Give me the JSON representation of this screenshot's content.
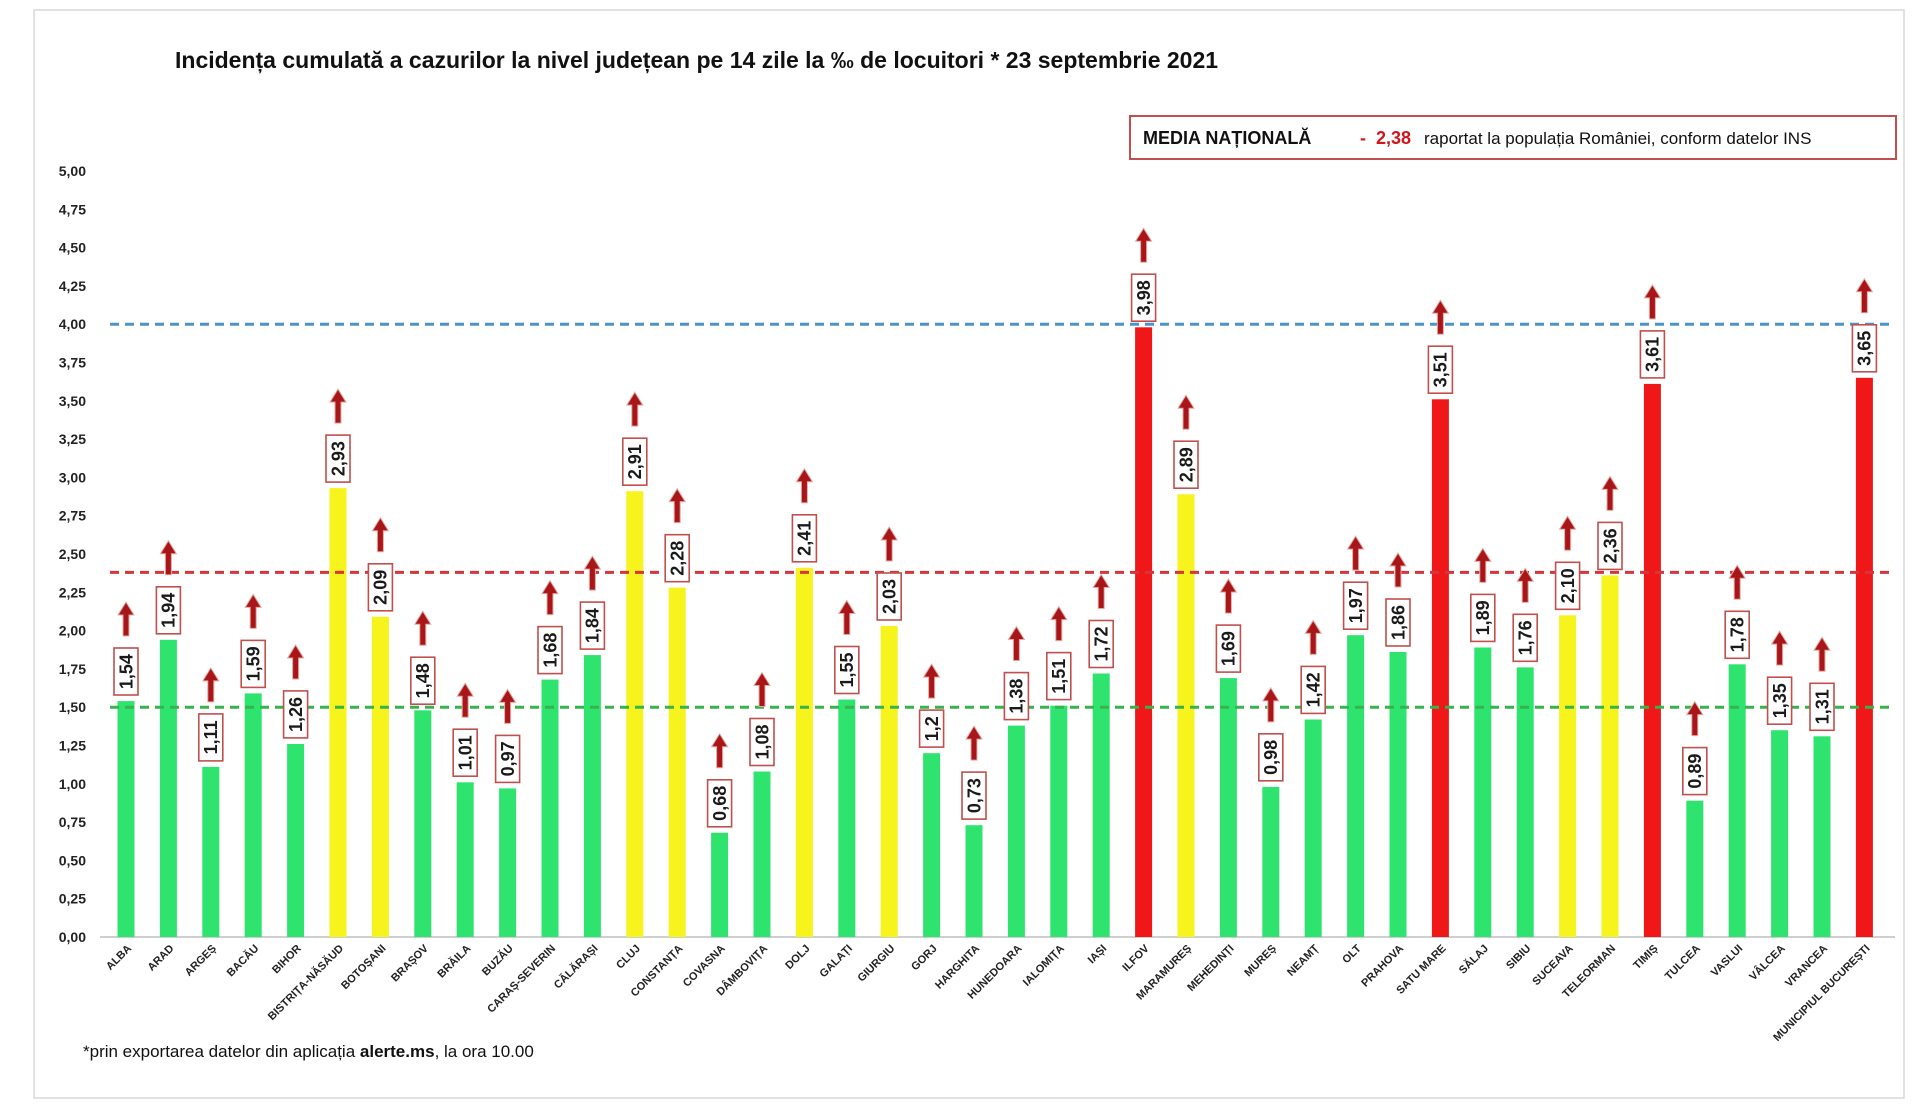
{
  "chart_data": {
    "type": "bar",
    "title": "Incidența cumulată a cazurilor la nivel județean pe 14 zile la ‰ de locuitori * 23 septembrie 2021",
    "xlabel": "",
    "ylabel": "",
    "categories": [
      "ALBA",
      "ARAD",
      "ARGEȘ",
      "BACĂU",
      "BIHOR",
      "BISTRIȚA-NĂSĂUD",
      "BOTOȘANI",
      "BRAȘOV",
      "BRĂILA",
      "BUZĂU",
      "CARAȘ-SEVERIN",
      "CĂLĂRAȘI",
      "CLUJ",
      "CONSTANȚA",
      "COVASNA",
      "DÂMBOVIȚA",
      "DOLJ",
      "GALAȚI",
      "GIURGIU",
      "GORJ",
      "HARGHITA",
      "HUNEDOARA",
      "IALOMIȚA",
      "IAȘI",
      "ILFOV",
      "MARAMUREȘ",
      "MEHEDINȚI",
      "MUREȘ",
      "NEAMȚ",
      "OLT",
      "PRAHOVA",
      "SATU MARE",
      "SĂLAJ",
      "SIBIU",
      "SUCEAVA",
      "TELEORMAN",
      "TIMIȘ",
      "TULCEA",
      "VASLUI",
      "VÂLCEA",
      "VRANCEA",
      "MUNICIPIUL BUCUREȘTI"
    ],
    "values": [
      1.54,
      1.94,
      1.11,
      1.59,
      1.26,
      2.93,
      2.09,
      1.48,
      1.01,
      0.97,
      1.68,
      1.84,
      2.91,
      2.28,
      0.68,
      1.08,
      2.41,
      1.55,
      2.03,
      1.2,
      0.73,
      1.38,
      1.51,
      1.72,
      3.98,
      2.89,
      1.69,
      0.98,
      1.42,
      1.97,
      1.86,
      3.51,
      1.89,
      1.76,
      2.1,
      2.36,
      3.61,
      0.89,
      1.78,
      1.35,
      1.31,
      3.65
    ],
    "value_labels": [
      "1,54",
      "1,94",
      "1,11",
      "1,59",
      "1,26",
      "2,93",
      "2,09",
      "1,48",
      "1,01",
      "0,97",
      "1,68",
      "1,84",
      "2,91",
      "2,28",
      "0,68",
      "1,08",
      "2,41",
      "1,55",
      "2,03",
      "1,2",
      "0,73",
      "1,38",
      "1,51",
      "1,72",
      "3,98",
      "2,89",
      "1,69",
      "0,98",
      "1,42",
      "1,97",
      "1,86",
      "3,51",
      "1,89",
      "1,76",
      "2,10",
      "2,36",
      "3,61",
      "0,89",
      "1,78",
      "1,35",
      "1,31",
      "3,65"
    ],
    "bar_colors": [
      "green",
      "green",
      "green",
      "green",
      "green",
      "yellow",
      "yellow",
      "green",
      "green",
      "green",
      "green",
      "green",
      "yellow",
      "yellow",
      "green",
      "green",
      "yellow",
      "green",
      "yellow",
      "green",
      "green",
      "green",
      "green",
      "green",
      "red",
      "yellow",
      "green",
      "green",
      "green",
      "green",
      "green",
      "red",
      "green",
      "green",
      "yellow",
      "yellow",
      "red",
      "green",
      "green",
      "green",
      "green",
      "red"
    ],
    "trend_icons": [
      "up-arrow",
      "up-arrow",
      "up-arrow",
      "up-arrow",
      "up-arrow",
      "up-arrow",
      "up-arrow",
      "up-arrow",
      "up-arrow",
      "up-arrow",
      "up-arrow",
      "up-arrow",
      "up-arrow",
      "up-arrow",
      "up-arrow",
      "up-arrow",
      "up-arrow",
      "up-arrow",
      "up-arrow",
      "up-arrow",
      "up-arrow",
      "up-arrow",
      "up-arrow",
      "up-arrow",
      "up-arrow",
      "up-arrow",
      "up-arrow",
      "up-arrow",
      "up-arrow",
      "up-arrow",
      "up-arrow",
      "up-arrow",
      "up-arrow",
      "up-arrow",
      "up-arrow",
      "up-arrow",
      "up-arrow",
      "up-arrow",
      "up-arrow",
      "up-arrow",
      "up-arrow",
      "up-arrow"
    ],
    "palette": {
      "green": "#2fe46e",
      "yellow": "#f7f31d",
      "red": "#ef1717",
      "arrow": "#a8161a",
      "label_border": "#c0504d"
    },
    "ylim": [
      0,
      5
    ],
    "yticks": {
      "values": [
        0,
        0.25,
        0.5,
        0.75,
        1,
        1.25,
        1.5,
        1.75,
        2,
        2.25,
        2.5,
        2.75,
        3,
        3.25,
        3.5,
        3.75,
        4,
        4.25,
        4.5,
        4.75,
        5
      ],
      "labels": [
        "0,00",
        "0,25",
        "0,50",
        "0,75",
        "1,00",
        "1,25",
        "1,50",
        "1,75",
        "2,00",
        "2,25",
        "2,50",
        "2,75",
        "3,00",
        "3,25",
        "3,50",
        "3,75",
        "4,00",
        "4,25",
        "4,50",
        "4,75",
        "5,00"
      ]
    },
    "reference_lines": [
      {
        "value": 4.0,
        "color": "#4b93cd",
        "style": "dashed"
      },
      {
        "value": 2.38,
        "color": "#d8343c",
        "style": "dashed"
      },
      {
        "value": 1.5,
        "color": "#35b34c",
        "style": "dashed"
      }
    ],
    "grid": false,
    "legend": {
      "position": "top-right",
      "label": "MEDIA NAȚIONALĂ",
      "separator": "-",
      "value": "2,38",
      "note": "raportat la populația României, conform datelor INS",
      "border_color": "#c0504d",
      "value_color": "#d0161c"
    }
  },
  "footnote": {
    "prefix": "*prin exportarea datelor din aplicația ",
    "app": "alerte.ms",
    "suffix": ", la ora 10.00"
  }
}
